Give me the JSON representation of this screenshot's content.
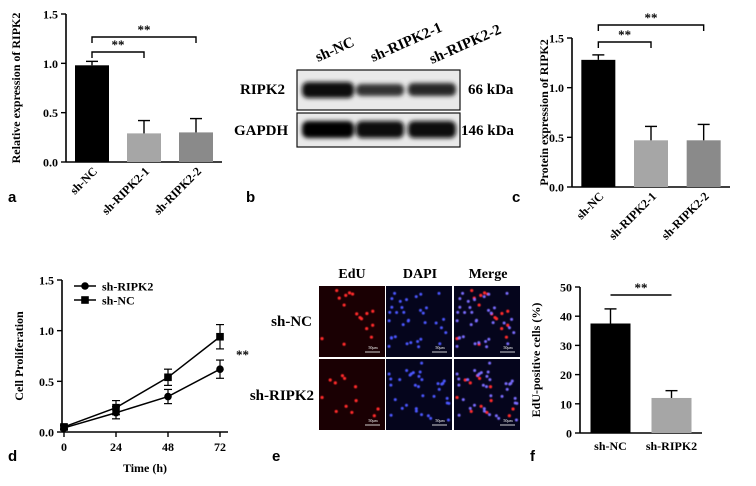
{
  "panels": [
    {
      "letter": "a"
    },
    {
      "letter": "b"
    },
    {
      "letter": "c"
    },
    {
      "letter": "d"
    },
    {
      "letter": "e"
    },
    {
      "letter": "f"
    }
  ],
  "chart_data": [
    {
      "panel": "a",
      "type": "bar",
      "categories": [
        "sh-NC",
        "sh-RIPK2-1",
        "sh-RIPK2-2"
      ],
      "values": [
        0.98,
        0.29,
        0.3
      ],
      "errors": [
        0.04,
        0.13,
        0.14
      ],
      "colors": [
        "#000000",
        "#a6a6a6",
        "#8a8a8a"
      ],
      "ylabel": "Relative expression of RIPK2",
      "ylim": [
        0,
        1.5
      ],
      "yticks": [
        "0.0",
        "0.5",
        "1.0",
        "1.5"
      ],
      "significance": [
        {
          "from": 0,
          "to": 1,
          "label": "**"
        },
        {
          "from": 0,
          "to": 2,
          "label": "**"
        }
      ]
    },
    {
      "panel": "c",
      "type": "bar",
      "categories": [
        "sh-NC",
        "sh-RIPK2-1",
        "sh-RIPK2-2"
      ],
      "values": [
        1.28,
        0.47,
        0.47
      ],
      "errors": [
        0.05,
        0.14,
        0.16
      ],
      "colors": [
        "#000000",
        "#a6a6a6",
        "#8a8a8a"
      ],
      "ylabel": "Protein expression of RIPK2",
      "ylim": [
        0,
        1.5
      ],
      "yticks": [
        "0.0",
        "0.5",
        "1.0",
        "1.5"
      ],
      "significance": [
        {
          "from": 0,
          "to": 1,
          "label": "**"
        },
        {
          "from": 0,
          "to": 2,
          "label": "**"
        }
      ]
    },
    {
      "panel": "d",
      "type": "line",
      "x": [
        0,
        24,
        48,
        72
      ],
      "xticks": [
        "0",
        "24",
        "48",
        "72"
      ],
      "xlabel": "Time (h)",
      "ylabel": "Cell Proliferation",
      "ylim": [
        0,
        1.5
      ],
      "yticks": [
        "0.0",
        "0.5",
        "1.0",
        "1.5"
      ],
      "legend_position": "top-left",
      "series": [
        {
          "name": "sh-RIPK2",
          "marker": "circle",
          "values": [
            0.04,
            0.19,
            0.35,
            0.62
          ],
          "errors": [
            0.02,
            0.06,
            0.07,
            0.09
          ]
        },
        {
          "name": "sh-NC",
          "marker": "square",
          "values": [
            0.05,
            0.24,
            0.54,
            0.94
          ],
          "errors": [
            0.02,
            0.07,
            0.08,
            0.12
          ]
        }
      ],
      "annotation": "**"
    },
    {
      "panel": "f",
      "type": "bar",
      "categories": [
        "sh-NC",
        "sh-RIPK2"
      ],
      "values": [
        37.5,
        12.0
      ],
      "errors": [
        5.0,
        2.5
      ],
      "colors": [
        "#000000",
        "#a6a6a6"
      ],
      "ylabel": "EdU-positive cells (%)",
      "ylim": [
        0,
        50
      ],
      "yticks": [
        "0",
        "10",
        "20",
        "30",
        "40",
        "50"
      ],
      "significance": [
        {
          "from": 0,
          "to": 1,
          "label": "**"
        }
      ]
    }
  ],
  "blot": {
    "lanes": [
      "sh-NC",
      "sh-RIPK2-1",
      "sh-RIPK2-2"
    ],
    "rows": [
      {
        "protein": "RIPK2",
        "size": "66 kDa"
      },
      {
        "protein": "GAPDH",
        "size": "146 kDa"
      }
    ]
  },
  "microscopy": {
    "columns": [
      "EdU",
      "DAPI",
      "Merge"
    ],
    "rows": [
      "sh-NC",
      "sh-RIPK2"
    ],
    "scale_bar": "50μm"
  }
}
